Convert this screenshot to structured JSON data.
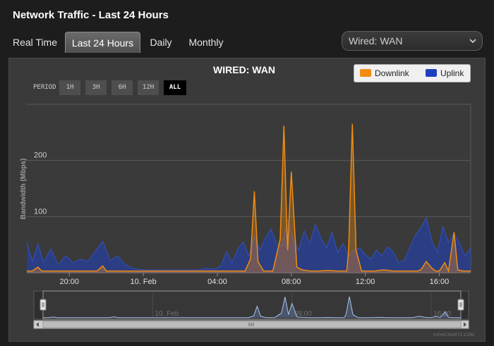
{
  "window": {
    "title": "Network Traffic - Last 24 Hours"
  },
  "tabs": [
    {
      "label": "Real Time",
      "active": false
    },
    {
      "label": "Last 24 Hours",
      "active": true
    },
    {
      "label": "Daily",
      "active": false
    },
    {
      "label": "Monthly",
      "active": false
    }
  ],
  "interface_select": {
    "value": "Wired: WAN"
  },
  "period": {
    "label": "PERIOD",
    "buttons": [
      {
        "label": "1H",
        "active": false
      },
      {
        "label": "3H",
        "active": false
      },
      {
        "label": "6H",
        "active": false
      },
      {
        "label": "12H",
        "active": false
      },
      {
        "label": "ALL",
        "active": true
      }
    ]
  },
  "credits": "HIGHCHARTS.COM",
  "colors": {
    "downlink": "#f08c0f",
    "uplink": "#1f3fbf",
    "panel": "#3a3a3a",
    "grid": "#5a5a5a"
  },
  "chart_data": {
    "type": "area",
    "title": "WIRED: WAN",
    "ylabel": "Bandwidth (Mbps)",
    "ylim": [
      0,
      300
    ],
    "yticks": [
      100,
      200
    ],
    "x_range_hours": [
      17.7,
      41.7
    ],
    "x_ticks": [
      {
        "label": "20:00",
        "hour": 20
      },
      {
        "label": "10. Feb",
        "hour": 24
      },
      {
        "label": "04:00",
        "hour": 28
      },
      {
        "label": "08:00",
        "hour": 32
      },
      {
        "label": "12:00",
        "hour": 36
      },
      {
        "label": "16:00",
        "hour": 40
      }
    ],
    "navigator_labels": [
      {
        "label": "10. Feb",
        "hour": 24
      },
      {
        "label": "08:00",
        "hour": 32
      },
      {
        "label": "16:00",
        "hour": 40
      }
    ],
    "legend": "top-right",
    "grid": true,
    "series": [
      {
        "name": "Downlink",
        "x": [
          17.7,
          18.0,
          18.3,
          18.5,
          18.8,
          19.0,
          19.5,
          20.0,
          20.5,
          21.0,
          21.5,
          21.8,
          22.0,
          22.5,
          23.0,
          23.5,
          24.0,
          24.5,
          25.0,
          25.5,
          26.0,
          26.5,
          27.0,
          27.5,
          28.0,
          28.5,
          29.0,
          29.5,
          29.8,
          30.0,
          30.2,
          30.5,
          31.0,
          31.4,
          31.6,
          31.8,
          32.0,
          32.3,
          32.6,
          33.0,
          33.5,
          34.0,
          34.5,
          35.0,
          35.1,
          35.3,
          35.5,
          35.8,
          36.0,
          36.5,
          37.0,
          37.5,
          38.0,
          38.5,
          38.8,
          39.0,
          39.3,
          39.6,
          39.8,
          40.0,
          40.3,
          40.5,
          40.8,
          41.0,
          41.3,
          41.7
        ],
        "values": [
          3,
          3,
          10,
          3,
          3,
          3,
          3,
          3,
          3,
          3,
          3,
          12,
          3,
          3,
          3,
          3,
          3,
          3,
          3,
          3,
          3,
          3,
          3,
          3,
          3,
          3,
          3,
          3,
          25,
          145,
          20,
          3,
          3,
          60,
          262,
          40,
          180,
          10,
          5,
          3,
          3,
          4,
          3,
          3,
          40,
          265,
          40,
          3,
          3,
          3,
          5,
          3,
          3,
          3,
          3,
          5,
          20,
          8,
          3,
          3,
          18,
          3,
          72,
          5,
          3,
          3
        ]
      },
      {
        "name": "Uplink",
        "x": [
          17.7,
          18.0,
          18.3,
          18.6,
          19.0,
          19.4,
          19.8,
          20.2,
          20.6,
          21.0,
          21.4,
          21.8,
          22.2,
          22.6,
          23.0,
          23.4,
          23.8,
          24.2,
          24.6,
          25.0,
          25.4,
          25.8,
          26.2,
          26.6,
          27.0,
          27.4,
          27.8,
          28.2,
          28.5,
          28.8,
          29.1,
          29.4,
          29.7,
          30.0,
          30.3,
          30.6,
          30.9,
          31.2,
          31.5,
          31.8,
          32.1,
          32.4,
          32.7,
          33.0,
          33.3,
          33.6,
          33.9,
          34.2,
          34.5,
          34.8,
          35.1,
          35.4,
          35.7,
          36.0,
          36.3,
          36.6,
          36.9,
          37.2,
          37.5,
          37.8,
          38.1,
          38.4,
          38.7,
          39.0,
          39.3,
          39.6,
          39.9,
          40.2,
          40.5,
          40.8,
          41.1,
          41.4,
          41.7
        ],
        "values": [
          55,
          20,
          52,
          18,
          42,
          14,
          30,
          18,
          24,
          20,
          38,
          56,
          22,
          30,
          15,
          8,
          6,
          5,
          5,
          5,
          5,
          5,
          5,
          5,
          5,
          8,
          6,
          12,
          38,
          18,
          42,
          55,
          30,
          66,
          40,
          62,
          78,
          52,
          48,
          95,
          60,
          40,
          74,
          52,
          86,
          62,
          44,
          72,
          36,
          52,
          30,
          40,
          44,
          32,
          24,
          40,
          30,
          46,
          38,
          18,
          22,
          44,
          66,
          80,
          98,
          56,
          36,
          82,
          54,
          70,
          52,
          30,
          44
        ]
      }
    ]
  }
}
